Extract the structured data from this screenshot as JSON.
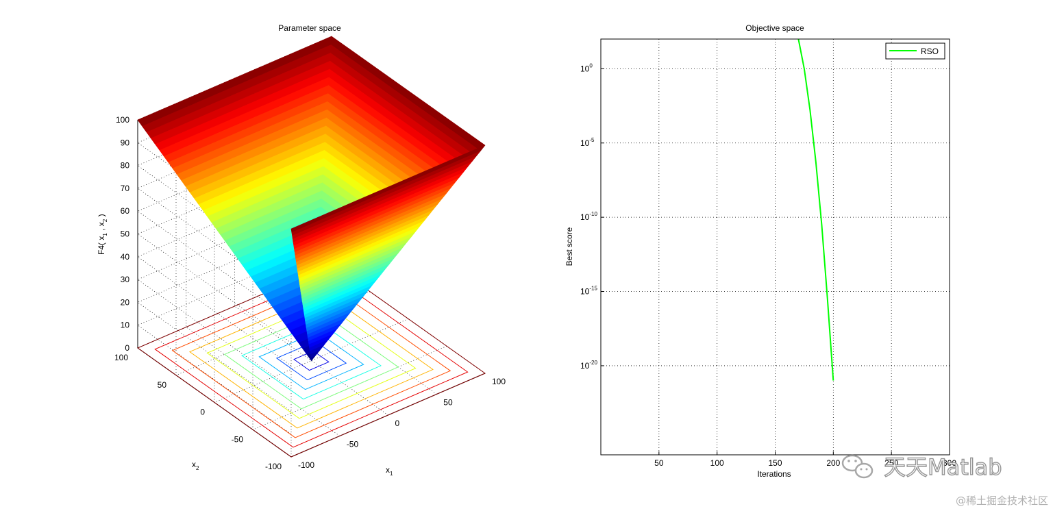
{
  "chart_data": [
    {
      "type": "surface",
      "title": "Parameter space",
      "xlabel": "x",
      "xlabel_sub": "1",
      "ylabel": "x",
      "ylabel_sub": "2",
      "zlabel": "F4( x",
      "zlabel_sub1": "1",
      "zlabel_mid": " , x",
      "zlabel_sub2": "2",
      "zlabel_end": " )",
      "function": "max(|x1|, |x2|)",
      "xlim": [
        -100,
        100
      ],
      "ylim": [
        -100,
        100
      ],
      "zlim": [
        0,
        100
      ],
      "x_ticks": [
        "-100",
        "-50",
        "0",
        "50",
        "100"
      ],
      "y_ticks": [
        "-100",
        "-50",
        "0",
        "50",
        "100"
      ],
      "z_ticks": [
        "0",
        "10",
        "20",
        "30",
        "40",
        "50",
        "60",
        "70",
        "80",
        "90",
        "100"
      ],
      "contour_levels": [
        10,
        20,
        30,
        40,
        50,
        60,
        70,
        80,
        90,
        100
      ],
      "colormap": "jet",
      "grid": true
    },
    {
      "type": "line",
      "title": "Objective space",
      "xlabel": "Iterations",
      "ylabel": "Best score",
      "xlim": [
        0,
        300
      ],
      "ylim_exponents": [
        -26,
        2
      ],
      "yscale": "log",
      "x_ticks": [
        "50",
        "100",
        "150",
        "200",
        "250",
        "300"
      ],
      "y_tick_base": "10",
      "y_tick_exponents": [
        "0",
        "-5",
        "-10",
        "-15",
        "-20"
      ],
      "grid": true,
      "legend": "top-right",
      "series": [
        {
          "name": "RSO",
          "color": "#00ff00",
          "x": [
            170,
            175,
            180,
            185,
            190,
            195,
            200
          ],
          "log10_y": [
            2,
            0,
            -2.8,
            -6.3,
            -10.5,
            -15.5,
            -21
          ]
        }
      ]
    }
  ],
  "watermark": {
    "text": "天天Matlab",
    "source": "@稀土掘金技术社区"
  }
}
